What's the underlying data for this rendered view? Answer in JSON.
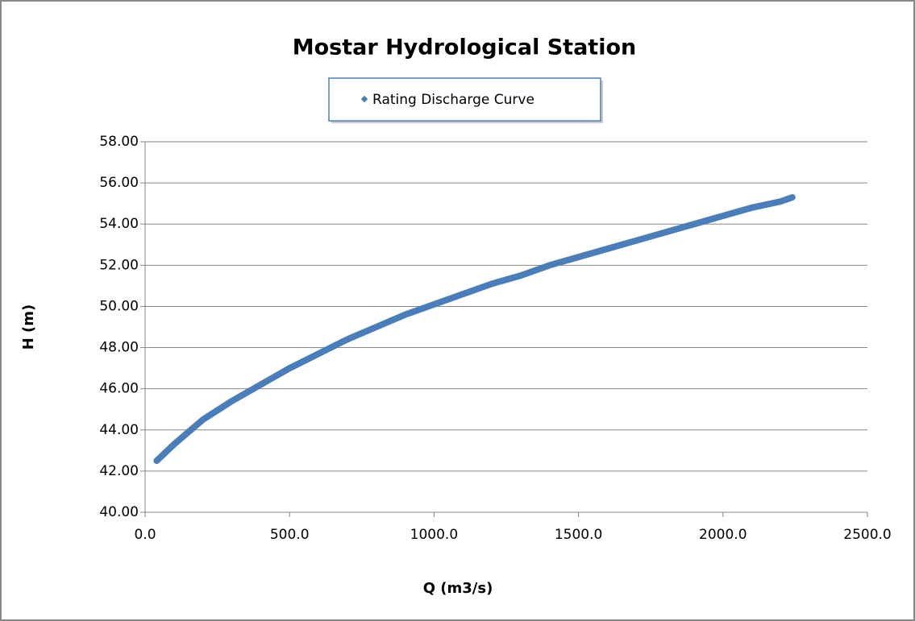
{
  "chart_data": {
    "type": "scatter",
    "title": "Mostar Hydrological Station",
    "xlabel": "Q (m3/s)",
    "ylabel": "H (m)",
    "legend": "top",
    "grid": true,
    "xlim": [
      0,
      2500
    ],
    "ylim": [
      40,
      58
    ],
    "xticks": [
      {
        "value": 0,
        "label": "0.0"
      },
      {
        "value": 500,
        "label": "500.0"
      },
      {
        "value": 1000,
        "label": "1000.0"
      },
      {
        "value": 1500,
        "label": "1500.0"
      },
      {
        "value": 2000,
        "label": "2000.0"
      },
      {
        "value": 2500,
        "label": "2500.0"
      }
    ],
    "yticks": [
      {
        "value": 40,
        "label": "40.00"
      },
      {
        "value": 42,
        "label": "42.00"
      },
      {
        "value": 44,
        "label": "44.00"
      },
      {
        "value": 46,
        "label": "46.00"
      },
      {
        "value": 48,
        "label": "48.00"
      },
      {
        "value": 50,
        "label": "50.00"
      },
      {
        "value": 52,
        "label": "52.00"
      },
      {
        "value": 54,
        "label": "54.00"
      },
      {
        "value": 56,
        "label": "56.00"
      },
      {
        "value": 58,
        "label": "58.00"
      }
    ],
    "series": [
      {
        "name": "Rating Discharge Curve",
        "color": "#4a7ebb",
        "x": [
          40,
          100,
          200,
          300,
          400,
          500,
          600,
          700,
          800,
          900,
          1000,
          1100,
          1200,
          1300,
          1400,
          1500,
          1600,
          1700,
          1800,
          1900,
          2000,
          2100,
          2200,
          2240
        ],
        "values": [
          42.5,
          43.3,
          44.5,
          45.4,
          46.2,
          47.0,
          47.7,
          48.4,
          49.0,
          49.6,
          50.1,
          50.6,
          51.1,
          51.5,
          52.0,
          52.4,
          52.8,
          53.2,
          53.6,
          54.0,
          54.4,
          54.8,
          55.1,
          55.3
        ]
      }
    ]
  }
}
